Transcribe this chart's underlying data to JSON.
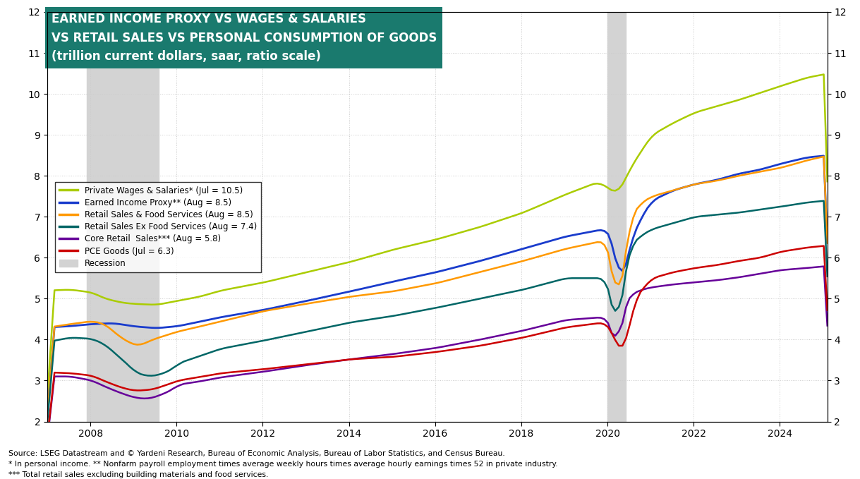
{
  "title_line1": "EARNED INCOME PROXY VS WAGES & SALARIES",
  "title_line2": "VS RETAIL SALES VS PERSONAL CONSUMPTION OF GOODS",
  "title_line3": "(trillion current dollars, saar, ratio scale)",
  "title_bg_color": "#1a7a6e",
  "title_text_color": "#ffffff",
  "recession_spans": [
    [
      2007.917,
      2009.583
    ]
  ],
  "recession2020_spans": [
    [
      2020.0,
      2020.417
    ]
  ],
  "recession_color": "#d3d3d3",
  "background_color": "#ffffff",
  "grid_color": "#cccccc",
  "ylim": [
    2,
    12
  ],
  "yticks": [
    2,
    3,
    4,
    5,
    6,
    7,
    8,
    9,
    10,
    11,
    12
  ],
  "xlim": [
    2007.0,
    2025.1
  ],
  "xticks": [
    2008,
    2010,
    2012,
    2014,
    2016,
    2018,
    2020,
    2022,
    2024
  ],
  "source_text": "Source: LSEG Datastream and © Yardeni Research, Bureau of Economic Analysis, Bureau of Labor Statistics, and Census Bureau.",
  "footnote1": "* In personal income. ** Nonfarm payroll employment times average weekly hours times average hourly earnings times 52 in private industry.",
  "footnote2": "*** Total retail sales excluding building materials and food services.",
  "series": [
    {
      "label": "Private Wages & Salaries* (Jul = 10.5)",
      "color": "#aacc00",
      "linewidth": 1.8
    },
    {
      "label": "Earned Income Proxy** (Aug = 8.5)",
      "color": "#1a3ccc",
      "linewidth": 2.0
    },
    {
      "label": "Retail Sales & Food Services (Aug = 8.5)",
      "color": "#ff9900",
      "linewidth": 1.8
    },
    {
      "label": "Retail Sales Ex Food Services (Aug = 7.4)",
      "color": "#006666",
      "linewidth": 1.8
    },
    {
      "label": "Core Retail  Sales*** (Aug = 5.8)",
      "color": "#660099",
      "linewidth": 1.8
    },
    {
      "label": "PCE Goods (Jul = 6.3)",
      "color": "#cc0000",
      "linewidth": 1.8
    },
    {
      "label": "Recession",
      "color": "#d3d3d3",
      "linewidth": 10
    }
  ]
}
